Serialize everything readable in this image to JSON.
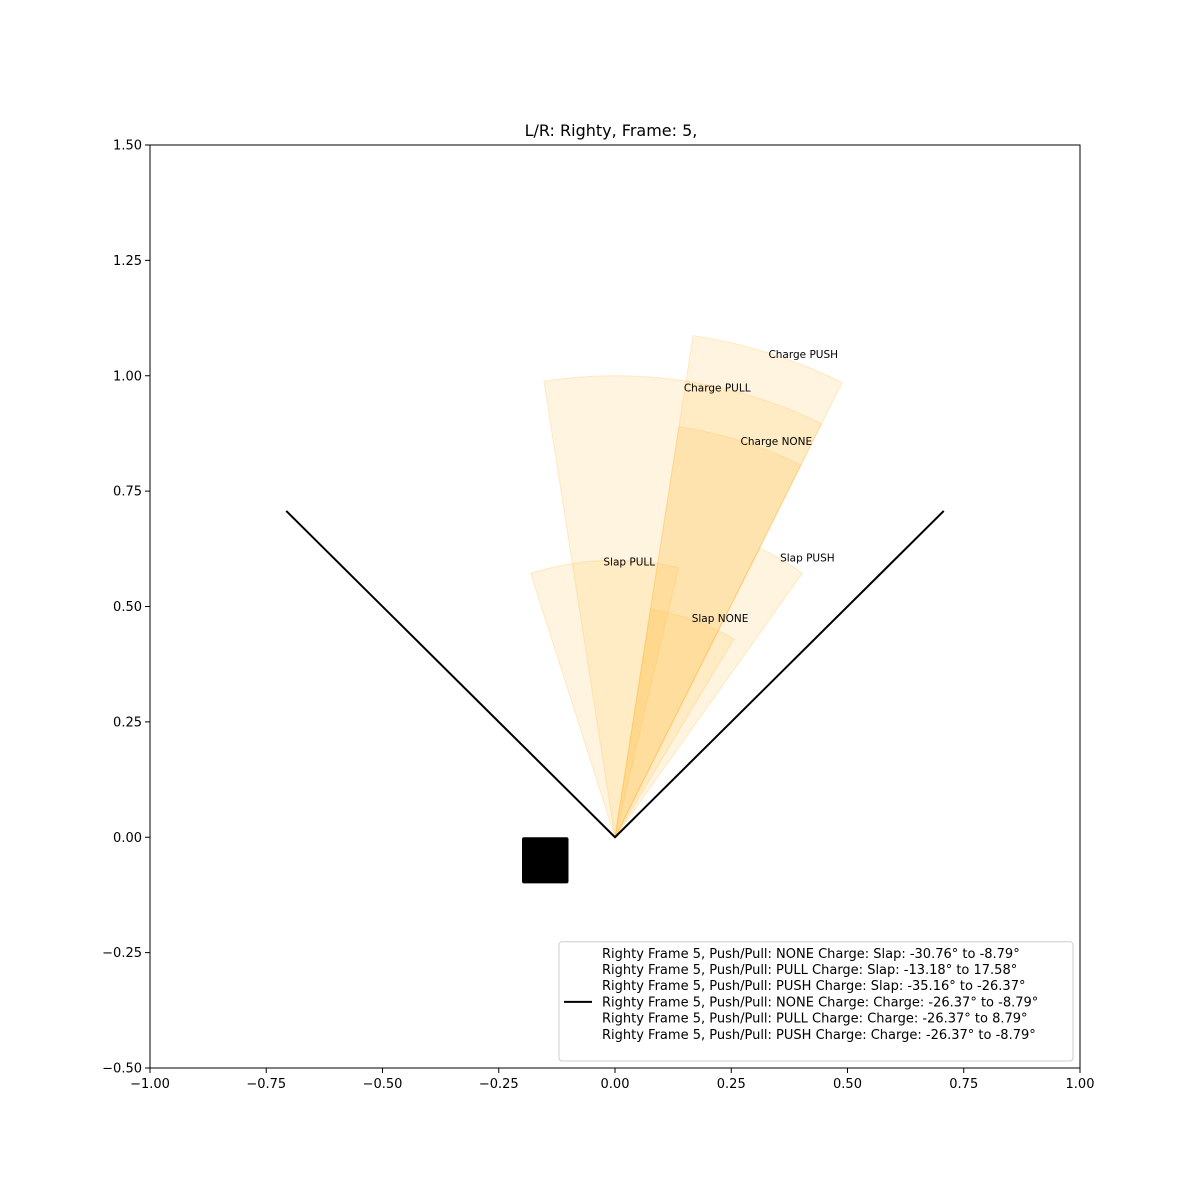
{
  "chart_data": {
    "type": "polar-wedges",
    "title": "L/R: Righty, Frame: 5,",
    "xlabel": "",
    "ylabel": "",
    "xlim": [
      -1.0,
      1.0
    ],
    "ylim": [
      -0.5,
      1.5
    ],
    "x_ticks": [
      "−1.00",
      "−0.75",
      "−0.50",
      "−0.25",
      "0.00",
      "0.25",
      "0.50",
      "0.75",
      "1.00"
    ],
    "y_ticks": [
      "−0.50",
      "−0.25",
      "0.00",
      "0.25",
      "0.50",
      "0.75",
      "1.00",
      "1.25",
      "1.50"
    ],
    "grid": false,
    "boundary_lines": {
      "origin": [
        0,
        0
      ],
      "left_end": [
        -0.707,
        0.707
      ],
      "right_end": [
        0.707,
        0.707
      ],
      "color": "#000000"
    },
    "marker": {
      "shape": "square",
      "x": -0.15,
      "y": -0.05,
      "size": 0.1,
      "color": "#000000"
    },
    "wedge_color": "#FFC04D",
    "wedges": [
      {
        "label": "Slap NONE",
        "from_deg": -30.76,
        "to_deg": -8.79,
        "radius": 0.5,
        "label_x": 0.165,
        "label_y": 0.466
      },
      {
        "label": "Slap PULL",
        "from_deg": -13.18,
        "to_deg": 17.58,
        "radius": 0.6,
        "label_x": -0.025,
        "label_y": 0.589
      },
      {
        "label": "Slap PUSH",
        "from_deg": -35.16,
        "to_deg": -26.37,
        "radius": 0.7,
        "label_x": 0.355,
        "label_y": 0.597
      },
      {
        "label": "Charge NONE",
        "from_deg": -26.37,
        "to_deg": -8.79,
        "radius": 0.9,
        "label_x": 0.27,
        "label_y": 0.85
      },
      {
        "label": "Charge PULL",
        "from_deg": -26.37,
        "to_deg": 8.79,
        "radius": 1.0,
        "label_x": 0.148,
        "label_y": 0.966
      },
      {
        "label": "Charge PUSH",
        "from_deg": -26.37,
        "to_deg": -8.79,
        "radius": 1.1,
        "label_x": 0.33,
        "label_y": 1.038
      }
    ],
    "legend": {
      "placement": "lower-right",
      "entries": [
        {
          "text": "Righty Frame 5, Push/Pull: NONE Charge: Slap: -30.76° to -8.79°",
          "swatch": false
        },
        {
          "text": "Righty Frame 5, Push/Pull: PULL Charge: Slap: -13.18° to 17.58°",
          "swatch": false
        },
        {
          "text": "Righty Frame 5, Push/Pull: PUSH Charge: Slap: -35.16° to -26.37°",
          "swatch": false
        },
        {
          "text": "Righty Frame 5, Push/Pull: NONE Charge: Charge: -26.37° to -8.79°",
          "swatch": true
        },
        {
          "text": "Righty Frame 5, Push/Pull: PULL Charge: Charge: -26.37° to 8.79°",
          "swatch": false
        },
        {
          "text": "Righty Frame 5, Push/Pull: PUSH Charge: Charge: -26.37° to -8.79°",
          "swatch": false
        }
      ]
    }
  }
}
